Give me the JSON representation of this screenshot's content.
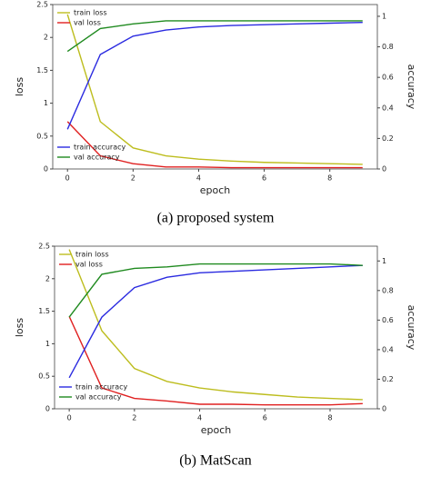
{
  "chart_data": [
    {
      "type": "line",
      "caption": "(a) proposed system",
      "xlabel": "epoch",
      "ylabel": "loss",
      "y2label": "accuracy",
      "x": [
        0,
        1,
        2,
        3,
        4,
        5,
        6,
        7,
        8,
        9
      ],
      "xlim": [
        -0.45,
        9.45
      ],
      "xticks": [
        0,
        2,
        4,
        6,
        8
      ],
      "ylim": [
        0,
        2.5
      ],
      "yticks": [
        0.0,
        0.5,
        1.0,
        1.5,
        2.0,
        2.5
      ],
      "y2lim": [
        0,
        1.077
      ],
      "y2ticks": [
        0.0,
        0.2,
        0.4,
        0.6,
        0.8,
        1.0
      ],
      "legend": {
        "y": "upper left",
        "y2": "lower left"
      },
      "series": [
        {
          "name": "train loss",
          "color": "#bdbd1e",
          "values": [
            2.35,
            0.72,
            0.32,
            0.2,
            0.15,
            0.12,
            0.1,
            0.09,
            0.08,
            0.07
          ]
        },
        {
          "name": "val loss",
          "color": "#e02020",
          "values": [
            0.72,
            0.2,
            0.08,
            0.03,
            0.03,
            0.02,
            0.02,
            0.02,
            0.02,
            0.02
          ]
        },
        {
          "name": "train accuracy",
          "color": "#2a2ae0",
          "axis": "y2",
          "values": [
            0.26,
            0.75,
            0.87,
            0.91,
            0.93,
            0.94,
            0.945,
            0.95,
            0.955,
            0.96
          ]
        },
        {
          "name": "val accuracy",
          "color": "#1f8a1f",
          "axis": "y2",
          "values": [
            0.77,
            0.92,
            0.95,
            0.97,
            0.97,
            0.97,
            0.97,
            0.97,
            0.97,
            0.97
          ]
        }
      ]
    },
    {
      "type": "line",
      "caption": "(b) MatScan",
      "xlabel": "epoch",
      "ylabel": "loss",
      "y2label": "accuracy",
      "x": [
        0,
        1,
        2,
        3,
        4,
        5,
        6,
        7,
        8,
        9
      ],
      "xlim": [
        -0.45,
        9.45
      ],
      "xticks": [
        0,
        2,
        4,
        6,
        8
      ],
      "ylim": [
        0,
        2.5
      ],
      "yticks": [
        0.0,
        0.5,
        1.0,
        1.5,
        2.0,
        2.5
      ],
      "y2lim": [
        0,
        1.1
      ],
      "y2ticks": [
        0.0,
        0.2,
        0.4,
        0.6,
        0.8,
        1.0
      ],
      "legend": {
        "y": "upper left",
        "y2": "lower left"
      },
      "series": [
        {
          "name": "train loss",
          "color": "#bdbd1e",
          "values": [
            2.45,
            1.2,
            0.62,
            0.42,
            0.32,
            0.26,
            0.22,
            0.18,
            0.16,
            0.14
          ]
        },
        {
          "name": "val loss",
          "color": "#e02020",
          "values": [
            1.42,
            0.32,
            0.16,
            0.12,
            0.07,
            0.07,
            0.06,
            0.06,
            0.06,
            0.08
          ]
        },
        {
          "name": "train accuracy",
          "color": "#2a2ae0",
          "axis": "y2",
          "values": [
            0.21,
            0.62,
            0.82,
            0.89,
            0.92,
            0.93,
            0.94,
            0.95,
            0.96,
            0.97
          ]
        },
        {
          "name": "val accuracy",
          "color": "#1f8a1f",
          "axis": "y2",
          "values": [
            0.62,
            0.91,
            0.95,
            0.96,
            0.98,
            0.98,
            0.98,
            0.98,
            0.98,
            0.97
          ]
        }
      ]
    }
  ]
}
